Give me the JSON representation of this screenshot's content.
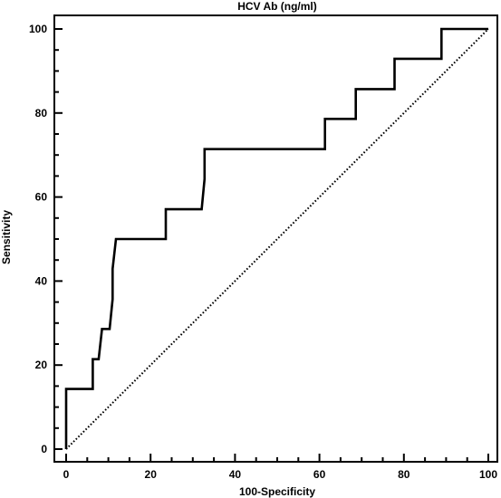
{
  "chart_data": {
    "type": "line",
    "title": "HCV Ab (ng/ml)",
    "xlabel": "100-Specificity",
    "ylabel": "Sensitivity",
    "xlim": [
      0,
      100
    ],
    "ylim": [
      0,
      100
    ],
    "xticks": [
      0,
      20,
      40,
      60,
      80,
      100
    ],
    "yticks": [
      0,
      20,
      40,
      60,
      80,
      100
    ],
    "grid": false,
    "series": [
      {
        "style": "solid",
        "points": [
          [
            0,
            0
          ],
          [
            0,
            14.3
          ],
          [
            6.3,
            14.3
          ],
          [
            6.3,
            21.4
          ],
          [
            7.7,
            21.4
          ],
          [
            8.5,
            28.6
          ],
          [
            10.3,
            28.6
          ],
          [
            11.0,
            35.7
          ],
          [
            11.0,
            42.9
          ],
          [
            11.8,
            50.0
          ],
          [
            23.6,
            50.0
          ],
          [
            23.6,
            57.1
          ],
          [
            32.1,
            57.1
          ],
          [
            32.8,
            64.3
          ],
          [
            32.8,
            71.4
          ],
          [
            61.3,
            71.4
          ],
          [
            61.3,
            78.6
          ],
          [
            68.6,
            78.6
          ],
          [
            68.6,
            85.7
          ],
          [
            77.8,
            85.7
          ],
          [
            77.8,
            92.9
          ],
          [
            88.9,
            92.9
          ],
          [
            88.9,
            100
          ],
          [
            100,
            100
          ]
        ]
      },
      {
        "style": "dotted",
        "points": [
          [
            0,
            0
          ],
          [
            100,
            100
          ]
        ]
      }
    ]
  }
}
